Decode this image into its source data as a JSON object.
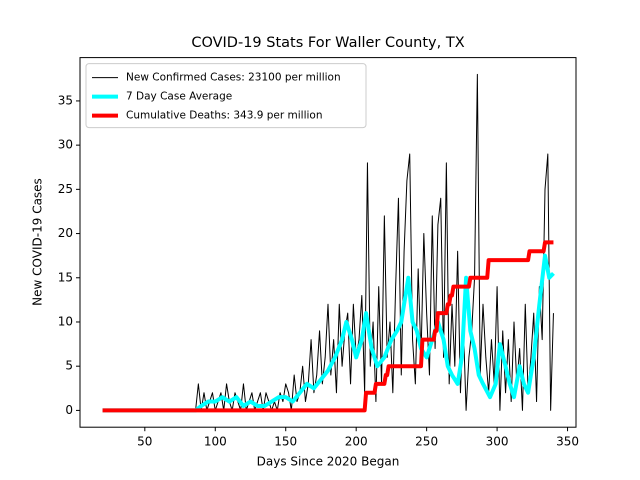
{
  "chart_data": {
    "type": "line",
    "title": "COVID-19 Stats For Waller County, TX",
    "x_label": "Days Since 2020 Began",
    "y_label": "New COVID-19 Cases",
    "xlim": [
      4,
      356
    ],
    "ylim": [
      -1.9,
      39.9
    ],
    "xticks": [
      50,
      100,
      150,
      200,
      250,
      300,
      350
    ],
    "yticks": [
      0,
      5,
      10,
      15,
      20,
      25,
      30,
      35
    ],
    "legend": "upper left",
    "series": [
      {
        "name": "New Confirmed Cases: 23100 per million",
        "color": "#000000",
        "width": 1,
        "x": [
          20,
          86,
          88,
          90,
          92,
          94,
          96,
          98,
          100,
          102,
          104,
          106,
          108,
          110,
          112,
          114,
          116,
          118,
          120,
          122,
          124,
          126,
          128,
          130,
          132,
          134,
          136,
          138,
          140,
          142,
          144,
          146,
          148,
          150,
          152,
          154,
          156,
          158,
          160,
          162,
          164,
          166,
          168,
          170,
          172,
          174,
          176,
          178,
          180,
          182,
          184,
          186,
          188,
          190,
          192,
          194,
          196,
          198,
          200,
          202,
          204,
          206,
          208,
          210,
          212,
          214,
          216,
          218,
          220,
          222,
          224,
          226,
          228,
          230,
          232,
          234,
          236,
          238,
          240,
          242,
          244,
          246,
          248,
          250,
          252,
          254,
          256,
          258,
          260,
          262,
          264,
          266,
          268,
          270,
          272,
          274,
          276,
          278,
          280,
          282,
          284,
          286,
          288,
          290,
          292,
          294,
          296,
          298,
          300,
          302,
          304,
          306,
          308,
          310,
          312,
          314,
          316,
          318,
          320,
          322,
          324,
          326,
          328,
          330,
          332,
          334,
          336,
          338,
          340
        ],
        "values": [
          0,
          0,
          3,
          0,
          2,
          0,
          1,
          2,
          0,
          1,
          2,
          0,
          3,
          1,
          0,
          2,
          1,
          0,
          3,
          0,
          1,
          2,
          0,
          1,
          2,
          0,
          2,
          1,
          0,
          1,
          0,
          2,
          1,
          3,
          2,
          0,
          4,
          1,
          2,
          5,
          1,
          3,
          8,
          2,
          4,
          9,
          3,
          6,
          12,
          4,
          8,
          2,
          12,
          5,
          9,
          11,
          3,
          12,
          6,
          8,
          13,
          2,
          28,
          5,
          10,
          1,
          14,
          3,
          22,
          6,
          10,
          2,
          14,
          24,
          4,
          18,
          26,
          29,
          8,
          3,
          16,
          6,
          20,
          11,
          4,
          22,
          7,
          21,
          24,
          6,
          28,
          3,
          12,
          5,
          18,
          2,
          10,
          0,
          6,
          9,
          15,
          38,
          4,
          12,
          6,
          2,
          8,
          3,
          14,
          0,
          9,
          2,
          8,
          1,
          10,
          3,
          7,
          0,
          12,
          2,
          6,
          11,
          1,
          14,
          8,
          25,
          29,
          0,
          11
        ]
      },
      {
        "name": "7 Day Case Average",
        "color": "#00ffff",
        "width": 4,
        "x": [
          20,
          86,
          90,
          95,
          100,
          105,
          110,
          115,
          120,
          125,
          130,
          135,
          140,
          145,
          150,
          155,
          160,
          165,
          170,
          175,
          180,
          185,
          190,
          193,
          197,
          200,
          204,
          207,
          211,
          215,
          220,
          225,
          229,
          232,
          235,
          237,
          240,
          243,
          246,
          250,
          254,
          258,
          262,
          265,
          268,
          272,
          275,
          278,
          281,
          284,
          287,
          290,
          295,
          299,
          302,
          306,
          309,
          312,
          316,
          319,
          322,
          326,
          330,
          334,
          337,
          340
        ],
        "values": [
          0,
          0,
          0.5,
          1,
          1,
          1.5,
          1,
          1.5,
          0.5,
          1,
          0.5,
          0.5,
          1,
          1.5,
          1.5,
          1,
          2,
          3,
          2.5,
          3.5,
          4.5,
          6,
          8,
          10,
          8,
          6,
          8,
          11,
          7,
          5,
          6,
          8,
          9,
          10,
          13,
          15,
          10,
          9,
          7,
          6,
          8,
          10,
          8,
          5,
          4,
          3,
          6,
          15,
          9,
          7,
          4,
          3,
          1.5,
          3,
          7.5,
          5,
          3,
          1.5,
          5,
          3,
          2,
          6,
          12,
          17.5,
          15,
          15.5
        ]
      },
      {
        "name": "Cumulative Deaths: 343.9 per million",
        "color": "#ff0000",
        "width": 4,
        "x": [
          20,
          206,
          207,
          213,
          214,
          220,
          221,
          222,
          223,
          246,
          247,
          255,
          256,
          257,
          258,
          264,
          265,
          266,
          267,
          268,
          269,
          280,
          281,
          293,
          294,
          322,
          323,
          333,
          334,
          340
        ],
        "values": [
          0,
          0,
          2,
          2,
          3,
          3,
          4,
          4,
          5,
          5,
          8,
          8,
          9,
          9,
          11,
          11,
          12,
          12,
          13,
          13,
          14,
          14,
          15,
          15,
          17,
          17,
          18,
          18,
          19,
          19
        ]
      }
    ]
  }
}
